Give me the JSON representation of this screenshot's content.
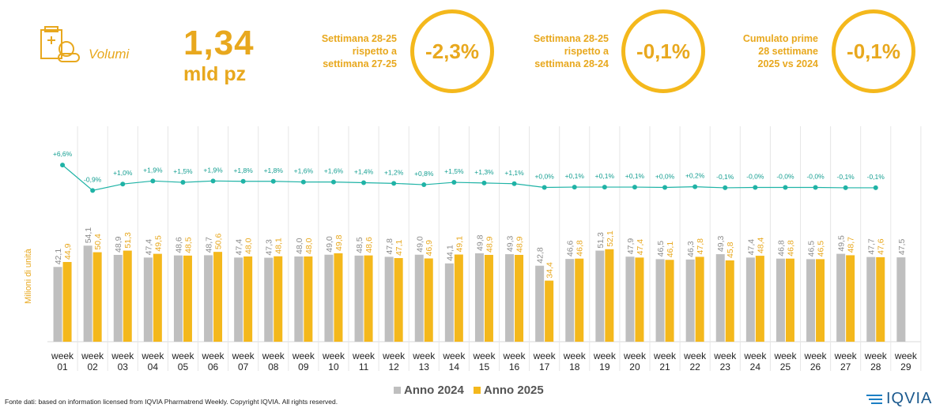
{
  "header": {
    "section_label": "Volumi",
    "big_value": "1,34",
    "big_unit": "mld pz"
  },
  "kpis": [
    {
      "line1": "Settimana 28-25",
      "line2": "rispetto a",
      "line3": "settimana 27-25",
      "value": "-2,3%"
    },
    {
      "line1": "Settimana 28-25",
      "line2": "rispetto a",
      "line3": "settimana 28-24",
      "value": "-0,1%"
    },
    {
      "line1": "Cumulato prime",
      "line2": "28 settimane",
      "line3": "2025 vs 2024",
      "value": "-0,1%"
    }
  ],
  "colors": {
    "accent": "#e8a81e",
    "bar_2024": "#bfbfbf",
    "bar_2025": "#f4b81c",
    "line": "#1fb3a6"
  },
  "icons": {
    "header": "medicine-box-icon"
  },
  "chart_data": {
    "type": "bar",
    "ylabel": "Milioni di unità",
    "categories": [
      "week 01",
      "week 02",
      "week 03",
      "week 04",
      "week 05",
      "week 06",
      "week 07",
      "week 08",
      "week 09",
      "week 10",
      "week 11",
      "week 12",
      "week 13",
      "week 14",
      "week 15",
      "week 16",
      "week 17",
      "week 18",
      "week 19",
      "week 20",
      "week 21",
      "week 22",
      "week 23",
      "week 24",
      "week 25",
      "week 26",
      "week 27",
      "week 28",
      "week 29"
    ],
    "category_lines": [
      [
        "week",
        "01"
      ],
      [
        "week",
        "02"
      ],
      [
        "week",
        "03"
      ],
      [
        "week",
        "04"
      ],
      [
        "week",
        "05"
      ],
      [
        "week",
        "06"
      ],
      [
        "week",
        "07"
      ],
      [
        "week",
        "08"
      ],
      [
        "week",
        "09"
      ],
      [
        "week",
        "10"
      ],
      [
        "week",
        "11"
      ],
      [
        "week",
        "12"
      ],
      [
        "week",
        "13"
      ],
      [
        "week",
        "14"
      ],
      [
        "week",
        "15"
      ],
      [
        "week",
        "16"
      ],
      [
        "week",
        "17"
      ],
      [
        "week",
        "18"
      ],
      [
        "week",
        "19"
      ],
      [
        "week",
        "20"
      ],
      [
        "week",
        "21"
      ],
      [
        "week",
        "22"
      ],
      [
        "week",
        "23"
      ],
      [
        "week",
        "24"
      ],
      [
        "week",
        "25"
      ],
      [
        "week",
        "26"
      ],
      [
        "week",
        "27"
      ],
      [
        "week",
        "28"
      ],
      [
        "week",
        "29"
      ]
    ],
    "series": [
      {
        "name": "Anno 2024",
        "values": [
          42.1,
          54.1,
          48.9,
          47.4,
          48.6,
          48.7,
          47.4,
          47.3,
          48.0,
          49.0,
          48.5,
          47.8,
          49.0,
          44.1,
          49.8,
          49.3,
          42.8,
          46.6,
          51.3,
          47.9,
          46.5,
          46.3,
          49.3,
          47.4,
          46.8,
          46.5,
          49.5,
          47.7,
          47.5
        ],
        "labels": [
          "42,1",
          "54,1",
          "48,9",
          "47,4",
          "48,6",
          "48,7",
          "47,4",
          "47,3",
          "48,0",
          "49,0",
          "48,5",
          "47,8",
          "49,0",
          "44,1",
          "49,8",
          "49,3",
          "42,8",
          "46,6",
          "51,3",
          "47,9",
          "46,5",
          "46,3",
          "49,3",
          "47,4",
          "46,8",
          "46,5",
          "49,5",
          "47,7",
          "47,5"
        ]
      },
      {
        "name": "Anno 2025",
        "values": [
          44.9,
          50.4,
          51.3,
          49.5,
          48.5,
          50.6,
          48.0,
          48.1,
          48.0,
          49.8,
          48.6,
          47.1,
          46.9,
          49.1,
          48.9,
          48.9,
          34.4,
          46.8,
          52.1,
          47.4,
          46.1,
          47.8,
          45.8,
          48.4,
          46.8,
          46.5,
          48.7,
          47.6,
          null
        ],
        "labels": [
          "44,9",
          "50,4",
          "51,3",
          "49,5",
          "48,5",
          "50,6",
          "48,0",
          "48,1",
          "48,0",
          "49,8",
          "48,6",
          "47,1",
          "46,9",
          "49,1",
          "48,9",
          "48,9",
          "34,4",
          "46,8",
          "52,1",
          "47,4",
          "46,1",
          "47,8",
          "45,8",
          "48,4",
          "46,8",
          "46,5",
          "48,7",
          "47,6",
          ""
        ]
      }
    ],
    "pct_change": {
      "values": [
        6.6,
        -0.9,
        1.0,
        1.9,
        1.5,
        1.9,
        1.8,
        1.8,
        1.6,
        1.6,
        1.4,
        1.2,
        0.8,
        1.5,
        1.3,
        1.1,
        0.0,
        0.1,
        0.1,
        0.1,
        0.0,
        0.2,
        -0.1,
        -0.0,
        -0.0,
        -0.0,
        -0.1,
        -0.1
      ],
      "labels": [
        "+6,6%",
        "-0,9%",
        "+1,0%",
        "+1,9%",
        "+1,5%",
        "+1,9%",
        "+1,8%",
        "+1,8%",
        "+1,6%",
        "+1,6%",
        "+1,4%",
        "+1,2%",
        "+0,8%",
        "+1,5%",
        "+1,3%",
        "+1,1%",
        "+0,0%",
        "+0,1%",
        "+0,1%",
        "+0,1%",
        "+0,0%",
        "+0,2%",
        "-0,1%",
        "-0,0%",
        "-0,0%",
        "-0,0%",
        "-0,1%",
        "-0,1%"
      ]
    },
    "legend": {
      "position": "bottom",
      "items": [
        "Anno 2024",
        "Anno 2025"
      ]
    }
  },
  "footer": {
    "source": "Fonte dati: based on information licensed from IQVIA Pharmatrend Weekly. Copyright IQVIA. All rights reserved.",
    "logo_text": "IQVIA"
  }
}
